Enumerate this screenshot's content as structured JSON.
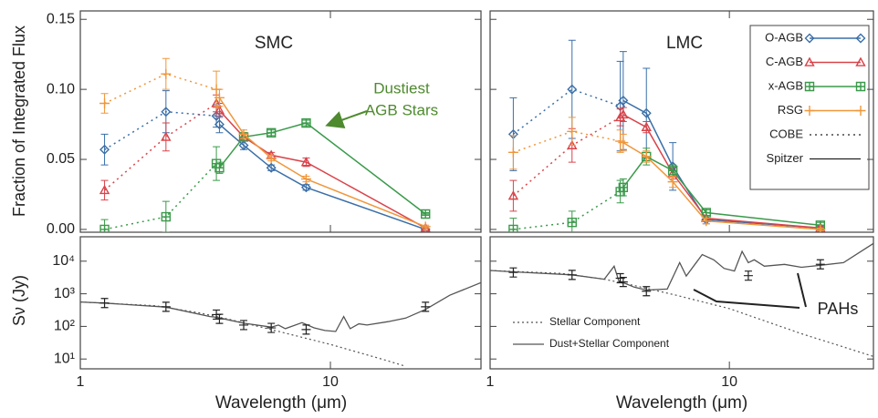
{
  "chart_data": [
    {
      "type": "line",
      "title": "SMC",
      "ylabel": "Fraction of Integrated Flux",
      "xscale": "log",
      "xlim": [
        1,
        40
      ],
      "ylim": [
        -0.002,
        0.156
      ],
      "yticks": [
        {
          "value": 0,
          "label": "0.00"
        },
        {
          "value": 0.05,
          "label": "0.05"
        },
        {
          "value": 0.1,
          "label": "0.10"
        },
        {
          "value": 0.15,
          "label": "0.15"
        }
      ],
      "x_cobe": [
        1.25,
        2.2,
        3.5
      ],
      "x_spitzer": [
        3.6,
        4.5,
        5.8,
        8.0,
        24
      ],
      "annotation": {
        "lines": [
          "Dustiest",
          "AGB Stars"
        ],
        "color": "#4e8a2e"
      },
      "series": [
        {
          "color": "#3a6fa8",
          "marker": "diamond",
          "cobe": [
            0.057,
            0.084,
            0.081
          ],
          "cobe_err": [
            0.011,
            0.015,
            0.008
          ],
          "spitzer": [
            0.075,
            0.06,
            0.044,
            0.03,
            0.0
          ],
          "spitzer_err": [
            0.006,
            0.003,
            0.002,
            0.002,
            0.001
          ]
        },
        {
          "color": "#d9434a",
          "marker": "triangle",
          "cobe": [
            0.028,
            0.066,
            0.09
          ],
          "cobe_err": [
            0.007,
            0.01,
            0.006
          ],
          "spitzer": [
            0.085,
            0.066,
            0.053,
            0.048,
            0.001
          ],
          "spitzer_err": [
            0.005,
            0.003,
            0.002,
            0.003,
            0.001
          ]
        },
        {
          "color": "#3a9a4a",
          "marker": "square",
          "cobe": [
            0.0,
            0.009,
            0.047
          ],
          "cobe_err": [
            0.007,
            0.011,
            0.012
          ],
          "spitzer": [
            0.044,
            0.066,
            0.069,
            0.076,
            0.011
          ],
          "spitzer_err": [
            0.004,
            0.003,
            0.002,
            0.002,
            0.001
          ]
        },
        {
          "color": "#f0963a",
          "marker": "plus",
          "cobe": [
            0.09,
            0.111,
            0.1
          ],
          "cobe_err": [
            0.007,
            0.011,
            0.013
          ],
          "spitzer": [
            0.094,
            0.068,
            0.051,
            0.036,
            0.002
          ],
          "spitzer_err": [
            0.006,
            0.003,
            0.002,
            0.002,
            0.001
          ]
        }
      ]
    },
    {
      "type": "line",
      "title": "LMC",
      "xscale": "log",
      "xlim": [
        1,
        40
      ],
      "ylim": [
        -0.002,
        0.156
      ],
      "x_cobe": [
        1.25,
        2.2,
        3.5
      ],
      "x_spitzer": [
        3.6,
        4.5,
        5.8,
        8.0,
        24
      ],
      "legend": {
        "corner": "upper right",
        "styles": [
          "COBE",
          "Spitzer"
        ]
      },
      "series": [
        {
          "name": "O-AGB",
          "color": "#3a6fa8",
          "marker": "diamond",
          "cobe": [
            0.068,
            0.1,
            0.088
          ],
          "cobe_err": [
            0.026,
            0.035,
            0.032
          ],
          "spitzer": [
            0.092,
            0.083,
            0.045,
            0.007,
            0.001
          ],
          "spitzer_err": [
            0.035,
            0.032,
            0.017,
            0.003,
            0.001
          ]
        },
        {
          "name": "C-AGB",
          "color": "#d9434a",
          "marker": "triangle",
          "cobe": [
            0.024,
            0.06,
            0.08
          ],
          "cobe_err": [
            0.011,
            0.012,
            0.006
          ],
          "spitzer": [
            0.082,
            0.073,
            0.04,
            0.008,
            0.001
          ],
          "spitzer_err": [
            0.005,
            0.004,
            0.004,
            0.002,
            0.001
          ]
        },
        {
          "name": "x-AGB",
          "color": "#3a9a4a",
          "marker": "square",
          "cobe": [
            0.0,
            0.005,
            0.027
          ],
          "cobe_err": [
            0.008,
            0.008,
            0.008
          ],
          "spitzer": [
            0.03,
            0.052,
            0.042,
            0.012,
            0.003
          ],
          "spitzer_err": [
            0.006,
            0.006,
            0.004,
            0.002,
            0.002
          ]
        },
        {
          "name": "RSG",
          "color": "#f0963a",
          "marker": "plus",
          "cobe": [
            0.055,
            0.07,
            0.063
          ],
          "cobe_err": [
            0.012,
            0.01,
            0.008
          ],
          "spitzer": [
            0.062,
            0.052,
            0.034,
            0.006,
            0.0
          ],
          "spitzer_err": [
            0.006,
            0.004,
            0.004,
            0.002,
            0.001
          ]
        }
      ]
    },
    {
      "type": "sed",
      "ylabel": "Sν (Jy)",
      "xlabel": "Wavelength (μm)",
      "xscale": "log",
      "yscale": "log",
      "xlim": [
        1,
        40
      ],
      "ylim": [
        5,
        56000
      ],
      "xticks": [
        1,
        10
      ],
      "yticks": [
        {
          "value": 10,
          "label": "10¹"
        },
        {
          "value": 100,
          "label": "10²"
        },
        {
          "value": 1000,
          "label": "10³"
        },
        {
          "value": 10000,
          "label": "10⁴"
        }
      ],
      "stellar": {
        "x": [
          1,
          2,
          3,
          4,
          6,
          10,
          16,
          20
        ],
        "values": [
          560,
          430,
          260,
          160,
          75,
          28,
          10,
          6
        ]
      },
      "total": {
        "x": [
          1,
          1.25,
          2.2,
          3.3,
          3.5,
          4.5,
          5.8,
          6.2,
          6.6,
          7.7,
          8.6,
          9.5,
          10.5,
          11.3,
          12,
          13,
          14,
          17,
          20,
          24,
          30,
          40
        ],
        "values": [
          560,
          520,
          390,
          200,
          190,
          125,
          95,
          110,
          85,
          130,
          90,
          75,
          70,
          200,
          85,
          120,
          110,
          140,
          180,
          330,
          900,
          2200
        ]
      },
      "photometry": {
        "x": [
          1.25,
          2.2,
          3.5,
          3.6,
          4.5,
          5.8,
          8.0,
          24
        ],
        "values": [
          520,
          400,
          230,
          170,
          110,
          90,
          80,
          400
        ]
      }
    },
    {
      "type": "sed",
      "xlabel": "Wavelength (μm)",
      "xscale": "log",
      "yscale": "log",
      "xlim": [
        1,
        40
      ],
      "ylim": [
        5,
        56000
      ],
      "xticks": [
        1,
        10
      ],
      "annotation": "PAHs",
      "stellar": {
        "name": "Stellar Component",
        "x": [
          1,
          2,
          3,
          4,
          6,
          10,
          20,
          40
        ],
        "values": [
          5200,
          4200,
          2800,
          1800,
          900,
          350,
          60,
          12
        ]
      },
      "total": {
        "name": "Dust+Stellar Component",
        "x": [
          1,
          1.25,
          2.2,
          3.0,
          3.3,
          3.45,
          4.0,
          4.5,
          5.5,
          6.2,
          6.6,
          7.7,
          8.6,
          9.5,
          10.5,
          11.3,
          12,
          12.7,
          14,
          17,
          20,
          24,
          30,
          40
        ],
        "values": [
          5200,
          4700,
          3800,
          2800,
          7000,
          2500,
          1600,
          1300,
          1400,
          9000,
          3500,
          16000,
          11000,
          6000,
          5000,
          20000,
          9000,
          11000,
          7000,
          8000,
          6500,
          7500,
          9000,
          35000
        ]
      },
      "photometry": {
        "x": [
          1.25,
          2.2,
          3.5,
          3.6,
          4.5,
          12,
          24
        ],
        "values": [
          4500,
          3800,
          3000,
          2300,
          1200,
          3600,
          8000
        ]
      }
    }
  ]
}
